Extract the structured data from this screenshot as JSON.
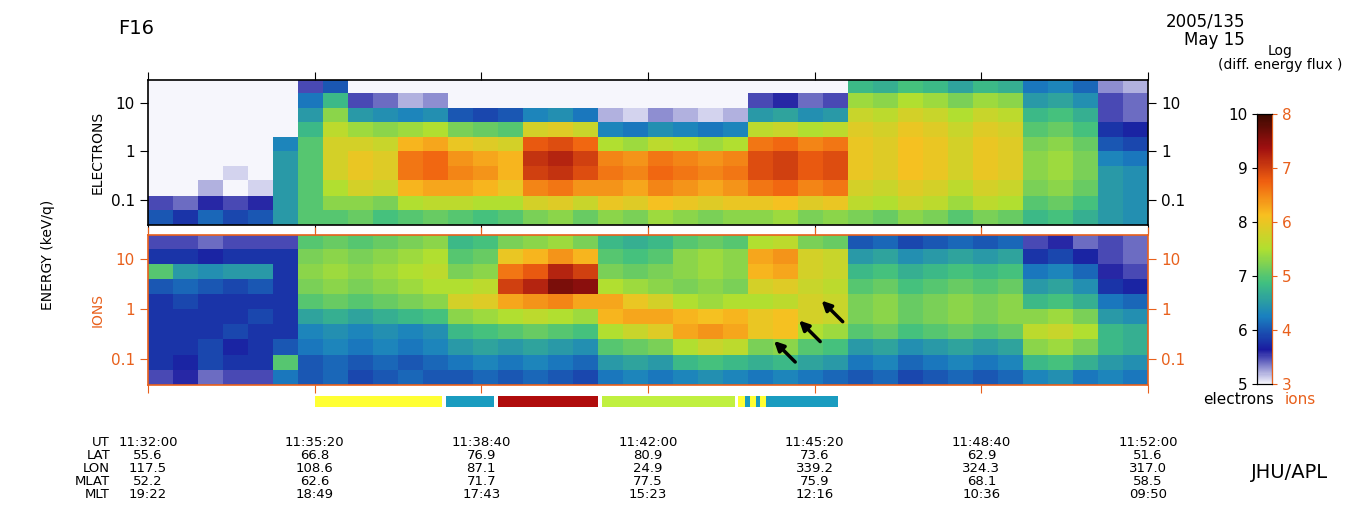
{
  "chart_data": {
    "type": "spectrogram",
    "title": "F16",
    "subtitle": "2005/135\nMay 15",
    "ylabel": "ENERGY (keV/q)",
    "credit": "JHU/APL",
    "log": "y",
    "xlim": [
      41520,
      42720
    ],
    "xticks": [
      {
        "value": 41520,
        "label": "11:32:00\n55.6\n117.5\n52.2\n19:22"
      },
      {
        "value": 41720,
        "label": "11:35:20\n66.8\n108.6\n62.6\n18:49"
      },
      {
        "value": 41920,
        "label": "11:38:40\n76.9\n87.1\n71.7\n17:43"
      },
      {
        "value": 42120,
        "label": "11:42:00\n80.9\n24.9\n77.5\n15:23"
      },
      {
        "value": 42320,
        "label": "11:45:20\n73.6\n339.2\n75.9\n12:16"
      },
      {
        "value": 42520,
        "label": "11:48:40\n62.9\n324.3\n68.1\n10:36"
      },
      {
        "value": 42720,
        "label": "11:52:00\n51.6\n317.0\n58.5\n09:50"
      }
    ],
    "tick_rows": "UT\nLAT\nLON\nMLAT\nMLT",
    "ylim": [
      0.03,
      30
    ],
    "yticks": [
      0.1,
      1,
      10
    ],
    "time_edges": [
      41520,
      41550,
      41580,
      41610,
      41640,
      41670,
      41700,
      41730,
      41760,
      41790,
      41820,
      41850,
      41880,
      41910,
      41940,
      41970,
      42000,
      42030,
      42060,
      42090,
      42120,
      42150,
      42180,
      42210,
      42240,
      42270,
      42300,
      42330,
      42360,
      42390,
      42420,
      42450,
      42480,
      42510,
      42540,
      42570,
      42600,
      42630,
      42660,
      42690,
      42720
    ],
    "energy_edges": [
      0.03,
      0.06,
      0.12,
      0.25,
      0.5,
      1,
      2,
      4,
      8,
      16,
      30
    ],
    "colorbar_title": "Log\n(diff. energy flux )",
    "panels": [
      {
        "name": "ELECTRONS",
        "color": "#000000",
        "colorbar_label": "electrons",
        "colorbar_range": [
          5,
          10
        ],
        "colorbar_ticks": [
          5,
          6,
          7,
          8,
          9,
          10
        ],
        "cells": [
          [
            6.0,
            5.8,
            6.1,
            5.9,
            6.0,
            6.5,
            7.0,
            7.0,
            7.1,
            6.9,
            7.0,
            7.1,
            7.0,
            6.9,
            7.0,
            7.2,
            7.3,
            7.1,
            7.3,
            7.2,
            7.4,
            7.3,
            7.2,
            7.3,
            7.3,
            7.4,
            7.2,
            7.3,
            7.2,
            7.1,
            7.3,
            7.2,
            7.0,
            7.2,
            7.1,
            6.8,
            6.9,
            6.7,
            6.5,
            6.4
          ],
          [
            5.5,
            5.4,
            5.6,
            5.5,
            5.6,
            6.5,
            7.0,
            7.3,
            7.3,
            7.2,
            7.5,
            7.6,
            7.6,
            7.5,
            7.5,
            7.8,
            7.9,
            7.7,
            8.0,
            7.9,
            8.1,
            8.0,
            7.9,
            8.0,
            8.0,
            8.1,
            7.9,
            8.0,
            7.6,
            7.5,
            7.7,
            7.6,
            7.4,
            7.6,
            7.5,
            7.0,
            7.1,
            6.9,
            6.5,
            6.4
          ],
          [
            5.0,
            5.0,
            5.2,
            5.0,
            5.1,
            6.5,
            7.0,
            7.5,
            7.8,
            7.7,
            8.2,
            8.3,
            8.3,
            8.2,
            8.0,
            8.5,
            8.6,
            8.4,
            8.4,
            8.3,
            8.5,
            8.4,
            8.3,
            8.4,
            8.6,
            8.7,
            8.5,
            8.6,
            7.8,
            7.7,
            7.9,
            7.8,
            7.6,
            7.8,
            7.7,
            7.2,
            7.3,
            7.1,
            6.5,
            6.4
          ],
          [
            5.0,
            5.0,
            5.0,
            5.1,
            5.0,
            6.5,
            7.0,
            7.8,
            8.0,
            7.9,
            8.6,
            8.7,
            8.5,
            8.4,
            8.2,
            9.0,
            9.1,
            8.9,
            8.6,
            8.5,
            8.7,
            8.6,
            8.5,
            8.6,
            8.9,
            9.0,
            8.8,
            8.9,
            8.0,
            7.9,
            8.1,
            8.0,
            7.8,
            8.0,
            7.9,
            7.3,
            7.4,
            7.2,
            6.5,
            6.4
          ],
          [
            5.0,
            5.0,
            5.0,
            5.0,
            5.0,
            6.5,
            7.0,
            7.8,
            8.0,
            7.9,
            8.6,
            8.7,
            8.4,
            8.3,
            8.2,
            9.1,
            9.2,
            9.0,
            8.5,
            8.4,
            8.6,
            8.5,
            8.4,
            8.5,
            8.9,
            9.0,
            8.8,
            8.9,
            8.0,
            7.9,
            8.1,
            8.0,
            7.8,
            8.0,
            7.9,
            7.3,
            7.4,
            7.2,
            6.3,
            6.2
          ],
          [
            5.0,
            5.0,
            5.0,
            5.0,
            5.0,
            6.3,
            7.0,
            7.8,
            7.8,
            7.7,
            8.2,
            8.3,
            8.0,
            7.9,
            7.8,
            8.8,
            8.9,
            8.7,
            7.5,
            7.4,
            7.6,
            7.5,
            7.4,
            7.5,
            8.6,
            8.7,
            8.5,
            8.6,
            8.0,
            7.9,
            8.1,
            8.0,
            7.8,
            8.0,
            7.9,
            7.2,
            7.3,
            7.1,
            6.0,
            5.9
          ],
          [
            5.0,
            5.0,
            5.0,
            5.0,
            5.0,
            5.0,
            6.8,
            7.6,
            7.4,
            7.3,
            7.4,
            7.5,
            7.2,
            7.1,
            7.0,
            7.8,
            7.9,
            7.7,
            6.3,
            6.2,
            6.4,
            6.3,
            6.2,
            6.3,
            7.6,
            7.7,
            7.5,
            7.6,
            7.9,
            7.8,
            8.0,
            7.9,
            7.7,
            7.9,
            7.8,
            7.0,
            7.1,
            6.9,
            5.8,
            5.7
          ],
          [
            5.0,
            5.0,
            5.0,
            5.0,
            5.0,
            5.0,
            6.5,
            7.3,
            6.5,
            6.4,
            6.3,
            6.4,
            6.0,
            5.9,
            6.0,
            6.3,
            6.4,
            6.2,
            5.2,
            5.1,
            5.3,
            5.2,
            5.1,
            5.2,
            6.5,
            6.6,
            6.4,
            6.5,
            7.7,
            7.6,
            7.8,
            7.7,
            7.5,
            7.7,
            7.6,
            6.8,
            6.9,
            6.7,
            5.5,
            5.4
          ],
          [
            5.0,
            5.0,
            5.0,
            5.0,
            5.0,
            5.0,
            6.2,
            6.8,
            5.5,
            5.4,
            5.2,
            5.3,
            5.0,
            5.0,
            5.0,
            5.0,
            5.0,
            5.0,
            5.0,
            5.0,
            5.0,
            5.0,
            5.0,
            5.0,
            5.5,
            5.6,
            5.4,
            5.5,
            7.4,
            7.3,
            7.5,
            7.4,
            7.2,
            7.4,
            7.3,
            6.5,
            6.6,
            6.4,
            5.5,
            5.4
          ],
          [
            5.0,
            5.0,
            5.0,
            5.0,
            5.0,
            5.0,
            5.5,
            6.0,
            5.0,
            5.0,
            5.0,
            5.0,
            5.0,
            5.0,
            5.0,
            5.0,
            5.0,
            5.0,
            5.0,
            5.0,
            5.0,
            5.0,
            5.0,
            5.0,
            5.0,
            5.0,
            5.0,
            5.0,
            6.8,
            6.7,
            6.9,
            6.8,
            6.6,
            6.8,
            6.7,
            6.2,
            6.3,
            6.1,
            5.3,
            5.2
          ]
        ]
      },
      {
        "name": "IONS",
        "color": "#e8601c",
        "colorbar_label": "ions",
        "colorbar_range": [
          3,
          8
        ],
        "colorbar_ticks": [
          3,
          4,
          5,
          6,
          7,
          8
        ],
        "cells": [
          [
            3.5,
            3.6,
            3.4,
            3.5,
            3.5,
            4.2,
            4.0,
            4.1,
            3.9,
            4.0,
            4.1,
            4.0,
            4.0,
            4.1,
            4.0,
            4.1,
            4.0,
            3.9,
            4.2,
            4.3,
            4.2,
            4.3,
            4.4,
            4.3,
            4.2,
            4.3,
            4.2,
            4.1,
            4.0,
            4.1,
            3.9,
            4.0,
            4.1,
            4.0,
            4.1,
            4.3,
            4.4,
            4.2,
            4.3,
            4.2
          ],
          [
            3.8,
            3.7,
            3.9,
            3.8,
            3.8,
            5.0,
            4.0,
            4.1,
            4.0,
            4.1,
            4.0,
            4.1,
            4.2,
            4.3,
            4.2,
            4.3,
            4.2,
            4.1,
            4.5,
            4.6,
            4.5,
            4.8,
            4.9,
            4.8,
            4.7,
            4.8,
            4.6,
            4.5,
            4.2,
            4.3,
            4.1,
            4.2,
            4.3,
            4.2,
            4.3,
            4.8,
            4.9,
            4.7,
            4.5,
            4.4
          ],
          [
            3.8,
            3.8,
            3.9,
            3.7,
            3.8,
            4.0,
            4.2,
            4.3,
            4.2,
            4.3,
            4.2,
            4.3,
            4.5,
            4.6,
            4.5,
            4.6,
            4.5,
            4.4,
            5.0,
            5.1,
            5.2,
            5.5,
            5.7,
            5.6,
            5.2,
            5.3,
            5.0,
            4.9,
            4.5,
            4.6,
            4.4,
            4.5,
            4.6,
            4.5,
            4.6,
            5.3,
            5.4,
            5.2,
            4.8,
            4.7
          ],
          [
            3.8,
            3.8,
            3.8,
            3.9,
            3.8,
            3.8,
            4.3,
            4.4,
            4.3,
            4.4,
            4.3,
            4.4,
            4.8,
            4.9,
            5.0,
            5.1,
            5.0,
            4.9,
            5.5,
            5.7,
            5.9,
            6.3,
            6.4,
            6.3,
            6.0,
            6.1,
            5.5,
            5.4,
            5.0,
            5.1,
            4.9,
            5.0,
            5.1,
            5.0,
            5.1,
            5.6,
            5.7,
            5.5,
            4.8,
            4.7
          ],
          [
            3.8,
            3.8,
            3.8,
            3.8,
            3.9,
            3.8,
            4.6,
            4.7,
            4.6,
            4.7,
            4.8,
            4.9,
            5.3,
            5.4,
            5.5,
            5.6,
            5.5,
            5.4,
            6.2,
            6.3,
            6.3,
            6.2,
            6.1,
            6.2,
            6.0,
            6.1,
            5.8,
            5.7,
            5.2,
            5.3,
            5.1,
            5.2,
            5.3,
            5.2,
            5.3,
            5.3,
            5.4,
            5.2,
            4.5,
            4.4
          ],
          [
            3.8,
            3.9,
            3.8,
            3.8,
            3.8,
            3.8,
            5.0,
            5.1,
            5.0,
            5.1,
            5.2,
            5.3,
            5.8,
            5.9,
            6.3,
            6.4,
            6.5,
            6.3,
            6.3,
            6.0,
            5.8,
            5.5,
            5.4,
            5.5,
            5.5,
            5.6,
            5.8,
            5.7,
            5.2,
            5.3,
            5.1,
            5.2,
            5.3,
            5.2,
            5.3,
            4.8,
            4.9,
            4.7,
            4.2,
            4.1
          ],
          [
            4.0,
            4.1,
            4.0,
            3.9,
            4.0,
            3.8,
            5.2,
            5.3,
            5.2,
            5.3,
            5.4,
            5.5,
            5.5,
            5.6,
            7.0,
            7.2,
            7.6,
            7.5,
            5.5,
            5.4,
            5.3,
            5.2,
            5.3,
            5.2,
            5.8,
            5.9,
            5.7,
            5.6,
            5.0,
            5.1,
            4.9,
            5.0,
            5.1,
            5.0,
            5.1,
            4.5,
            4.6,
            4.4,
            3.8,
            3.7
          ],
          [
            5.0,
            4.5,
            4.4,
            4.5,
            4.5,
            3.8,
            5.3,
            5.4,
            5.3,
            5.4,
            5.5,
            5.6,
            5.2,
            5.3,
            6.6,
            6.8,
            7.2,
            7.0,
            5.2,
            5.1,
            5.2,
            5.3,
            5.4,
            5.3,
            6.2,
            6.3,
            5.8,
            5.7,
            4.8,
            4.9,
            4.7,
            4.8,
            4.9,
            4.8,
            4.9,
            4.2,
            4.3,
            4.1,
            3.6,
            3.5
          ],
          [
            3.8,
            3.8,
            3.7,
            3.8,
            3.8,
            3.8,
            5.2,
            5.3,
            5.2,
            5.3,
            5.4,
            5.5,
            5.0,
            5.1,
            6.0,
            6.2,
            6.4,
            6.2,
            5.0,
            4.9,
            5.0,
            5.3,
            5.4,
            5.3,
            6.3,
            6.4,
            5.8,
            5.7,
            4.5,
            4.6,
            4.4,
            4.5,
            4.6,
            4.5,
            4.6,
            3.8,
            3.9,
            3.7,
            3.5,
            3.4
          ],
          [
            3.5,
            3.5,
            3.4,
            3.5,
            3.5,
            3.5,
            5.0,
            5.1,
            5.0,
            5.1,
            5.2,
            5.3,
            4.8,
            4.9,
            5.2,
            5.3,
            5.4,
            5.2,
            4.8,
            4.7,
            4.8,
            5.0,
            5.1,
            5.0,
            5.5,
            5.6,
            5.2,
            5.1,
            4.0,
            4.1,
            3.9,
            4.0,
            4.1,
            4.0,
            4.1,
            3.5,
            3.6,
            3.4,
            3.5,
            3.4
          ]
        ]
      }
    ],
    "regions": [
      {
        "start": 41720,
        "end": 41873,
        "color": "#ffff33"
      },
      {
        "start": 41878,
        "end": 41935,
        "color": "#1a9cc0"
      },
      {
        "start": 41940,
        "end": 42060,
        "color": "#b00c0c"
      },
      {
        "start": 42065,
        "end": 42224,
        "color": "#c0f040"
      },
      {
        "start": 42228,
        "end": 42236,
        "color": "#ffff33"
      },
      {
        "start": 42236,
        "end": 42242,
        "color": "#1a9cc0"
      },
      {
        "start": 42242,
        "end": 42250,
        "color": "#ffff33"
      },
      {
        "start": 42250,
        "end": 42254,
        "color": "#1a9cc0"
      },
      {
        "start": 42254,
        "end": 42262,
        "color": "#ffff33"
      },
      {
        "start": 42262,
        "end": 42348,
        "color": "#1a9cc0"
      }
    ],
    "arrows": [
      {
        "time": 42269,
        "energy": 0.25
      },
      {
        "time": 42299,
        "energy": 0.64
      },
      {
        "time": 42326,
        "energy": 1.6
      }
    ]
  }
}
